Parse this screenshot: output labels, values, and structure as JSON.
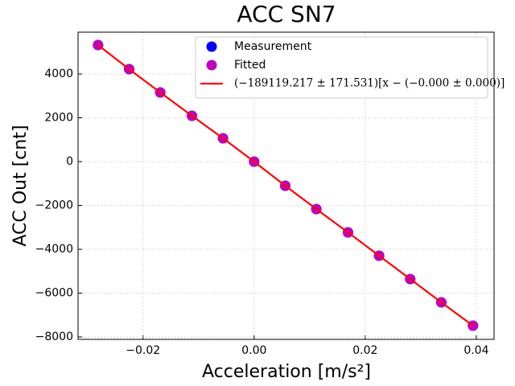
{
  "chart_data": {
    "type": "scatter",
    "title": "ACC SN7",
    "xlabel": "Acceleration [m/s²]",
    "ylabel": "ACC Out [cnt]",
    "x": [
      -0.0281,
      -0.0225,
      -0.0169,
      -0.0112,
      -0.0056,
      0,
      0.0056,
      0.0112,
      0.0169,
      0.0225,
      0.0281,
      0.0337,
      0.0394
    ],
    "series": [
      {
        "name": "Measurement",
        "color": "#0000ff",
        "kind": "points",
        "values": [
          5321,
          4220,
          3156,
          2092,
          1064,
          0,
          -1101,
          -2165,
          -3229,
          -4294,
          -5358,
          -6422,
          -7486
        ]
      },
      {
        "name": "Fitted",
        "color": "#bf00bf",
        "kind": "points",
        "values": [
          5321,
          4220,
          3156,
          2092,
          1064,
          0,
          -1101,
          -2165,
          -3229,
          -4294,
          -5358,
          -6422,
          -7486
        ]
      },
      {
        "name": "(−189119.217 ± 171.531)[x − (−0.000 ± 0.000)]",
        "color": "#ff0000",
        "kind": "line",
        "values": [
          5321,
          4220,
          3156,
          2092,
          1064,
          0,
          -1101,
          -2165,
          -3229,
          -4294,
          -5358,
          -6422,
          -7486
        ]
      }
    ],
    "xlim": [
      -0.0317,
      0.0432
    ],
    "ylim": [
      -8110,
      5908
    ],
    "xticks": [
      {
        "value": -0.02,
        "label": "−0.02"
      },
      {
        "value": 0,
        "label": "0.00"
      },
      {
        "value": 0.02,
        "label": "0.02"
      },
      {
        "value": 0.04,
        "label": "0.04"
      }
    ],
    "yticks": [
      {
        "value": -8000,
        "label": "−8000"
      },
      {
        "value": -6000,
        "label": "−6000"
      },
      {
        "value": -4000,
        "label": "−4000"
      },
      {
        "value": -2000,
        "label": "−2000"
      },
      0,
      2000,
      4000
    ],
    "grid": true,
    "legend": "upper right"
  }
}
